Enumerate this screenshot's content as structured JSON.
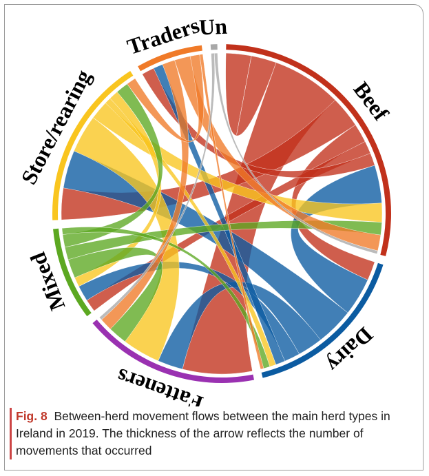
{
  "chart_data": {
    "type": "chord",
    "sectors": [
      {
        "name": "Beef",
        "color": "#c1311b"
      },
      {
        "name": "Dairy",
        "color": "#0b5ba1"
      },
      {
        "name": "Fatteners",
        "color": "#9a31b1"
      },
      {
        "name": "Mixed",
        "color": "#5ca821"
      },
      {
        "name": "Store/rearing",
        "color": "#f9c51f"
      },
      {
        "name": "Traders",
        "color": "#f07a28"
      },
      {
        "name": "Un",
        "color": "#a8a8a8"
      }
    ],
    "flows": [
      {
        "source": "Beef",
        "target": "Beef",
        "value": 8
      },
      {
        "source": "Beef",
        "target": "Fatteners",
        "value": 22
      },
      {
        "source": "Beef",
        "target": "Store/rearing",
        "value": 10
      },
      {
        "source": "Beef",
        "target": "Dairy",
        "value": 6
      },
      {
        "source": "Beef",
        "target": "Mixed",
        "value": 4
      },
      {
        "source": "Beef",
        "target": "Traders",
        "value": 4
      },
      {
        "source": "Dairy",
        "target": "Beef",
        "value": 12
      },
      {
        "source": "Dairy",
        "target": "Store/rearing",
        "value": 12
      },
      {
        "source": "Dairy",
        "target": "Fatteners",
        "value": 8
      },
      {
        "source": "Dairy",
        "target": "Mixed",
        "value": 5
      },
      {
        "source": "Dairy",
        "target": "Traders",
        "value": 3
      },
      {
        "source": "Store/rearing",
        "target": "Fatteners",
        "value": 12
      },
      {
        "source": "Store/rearing",
        "target": "Beef",
        "value": 6
      },
      {
        "source": "Store/rearing",
        "target": "Dairy",
        "value": 2
      },
      {
        "source": "Store/rearing",
        "target": "Mixed",
        "value": 3
      },
      {
        "source": "Mixed",
        "target": "Fatteners",
        "value": 6
      },
      {
        "source": "Mixed",
        "target": "Beef",
        "value": 4
      },
      {
        "source": "Mixed",
        "target": "Store/rearing",
        "value": 4
      },
      {
        "source": "Mixed",
        "target": "Dairy",
        "value": 2
      },
      {
        "source": "Traders",
        "target": "Fatteners",
        "value": 4
      },
      {
        "source": "Traders",
        "target": "Beef",
        "value": 5
      },
      {
        "source": "Traders",
        "target": "Store/rearing",
        "value": 3
      },
      {
        "source": "Traders",
        "target": "Dairy",
        "value": 1
      },
      {
        "source": "Un",
        "target": "Fatteners",
        "value": 1
      },
      {
        "source": "Un",
        "target": "Beef",
        "value": 1
      }
    ]
  },
  "caption": {
    "label": "Fig. 8",
    "text": "Between-herd movement flows between the main herd types in Ireland in 2019. The thickness of the arrow reflects the number of movements that occurred"
  }
}
